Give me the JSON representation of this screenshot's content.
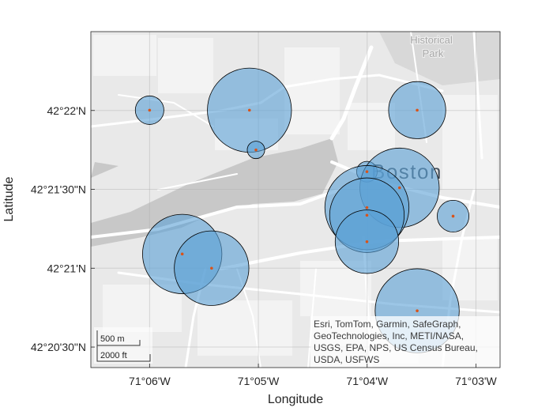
{
  "chart_data": {
    "type": "scatter",
    "title": "",
    "xlabel": "Longitude",
    "ylabel": "Latitude",
    "xlim": [
      -71.109,
      -71.0463
    ],
    "ylim": [
      42.3395,
      42.375
    ],
    "x_ticks": [
      {
        "value": -71.1,
        "label": "71°06'W"
      },
      {
        "value": -71.083333,
        "label": "71°05'W"
      },
      {
        "value": -71.066667,
        "label": "71°04'W"
      },
      {
        "value": -71.05,
        "label": "71°03'W"
      }
    ],
    "y_ticks": [
      {
        "value": 42.341667,
        "label": "42°20'30\"N"
      },
      {
        "value": 42.35,
        "label": "42°21'N"
      },
      {
        "value": 42.358333,
        "label": "42°21'30\"N"
      },
      {
        "value": 42.366667,
        "label": "42°22'N"
      }
    ],
    "grid": true,
    "marker_color": "#d95319",
    "bubble_color": "#5aa0d6",
    "points": [
      {
        "lon": -71.1,
        "lat": 42.3667,
        "r_m": 180
      },
      {
        "lon": -71.0847,
        "lat": 42.3667,
        "r_m": 530
      },
      {
        "lon": -71.0837,
        "lat": 42.3625,
        "r_m": 110
      },
      {
        "lon": -71.059,
        "lat": 42.3667,
        "r_m": 360
      },
      {
        "lon": -71.0667,
        "lat": 42.3602,
        "r_m": 130
      },
      {
        "lon": -71.0617,
        "lat": 42.3585,
        "r_m": 500
      },
      {
        "lon": -71.0667,
        "lat": 42.3564,
        "r_m": 530
      },
      {
        "lon": -71.0667,
        "lat": 42.3556,
        "r_m": 470
      },
      {
        "lon": -71.0667,
        "lat": 42.3528,
        "r_m": 400
      },
      {
        "lon": -71.0535,
        "lat": 42.3555,
        "r_m": 200
      },
      {
        "lon": -71.095,
        "lat": 42.3515,
        "r_m": 500
      },
      {
        "lon": -71.0905,
        "lat": 42.35,
        "r_m": 470
      },
      {
        "lon": -71.059,
        "lat": 42.3455,
        "r_m": 530
      }
    ]
  },
  "basemap": {
    "labels": {
      "city": "Boston",
      "park_line1": "Historical",
      "park_line2": "Park"
    },
    "attribution": [
      "Esri, TomTom, Garmin, SafeGraph,",
      "GeoTechnologies, Inc, METI/NASA,",
      "USGS, EPA, NPS, US Census Bureau,",
      "USDA, USFWS"
    ],
    "scalebar": {
      "metric": "500 m",
      "imperial": "2000 ft"
    }
  }
}
